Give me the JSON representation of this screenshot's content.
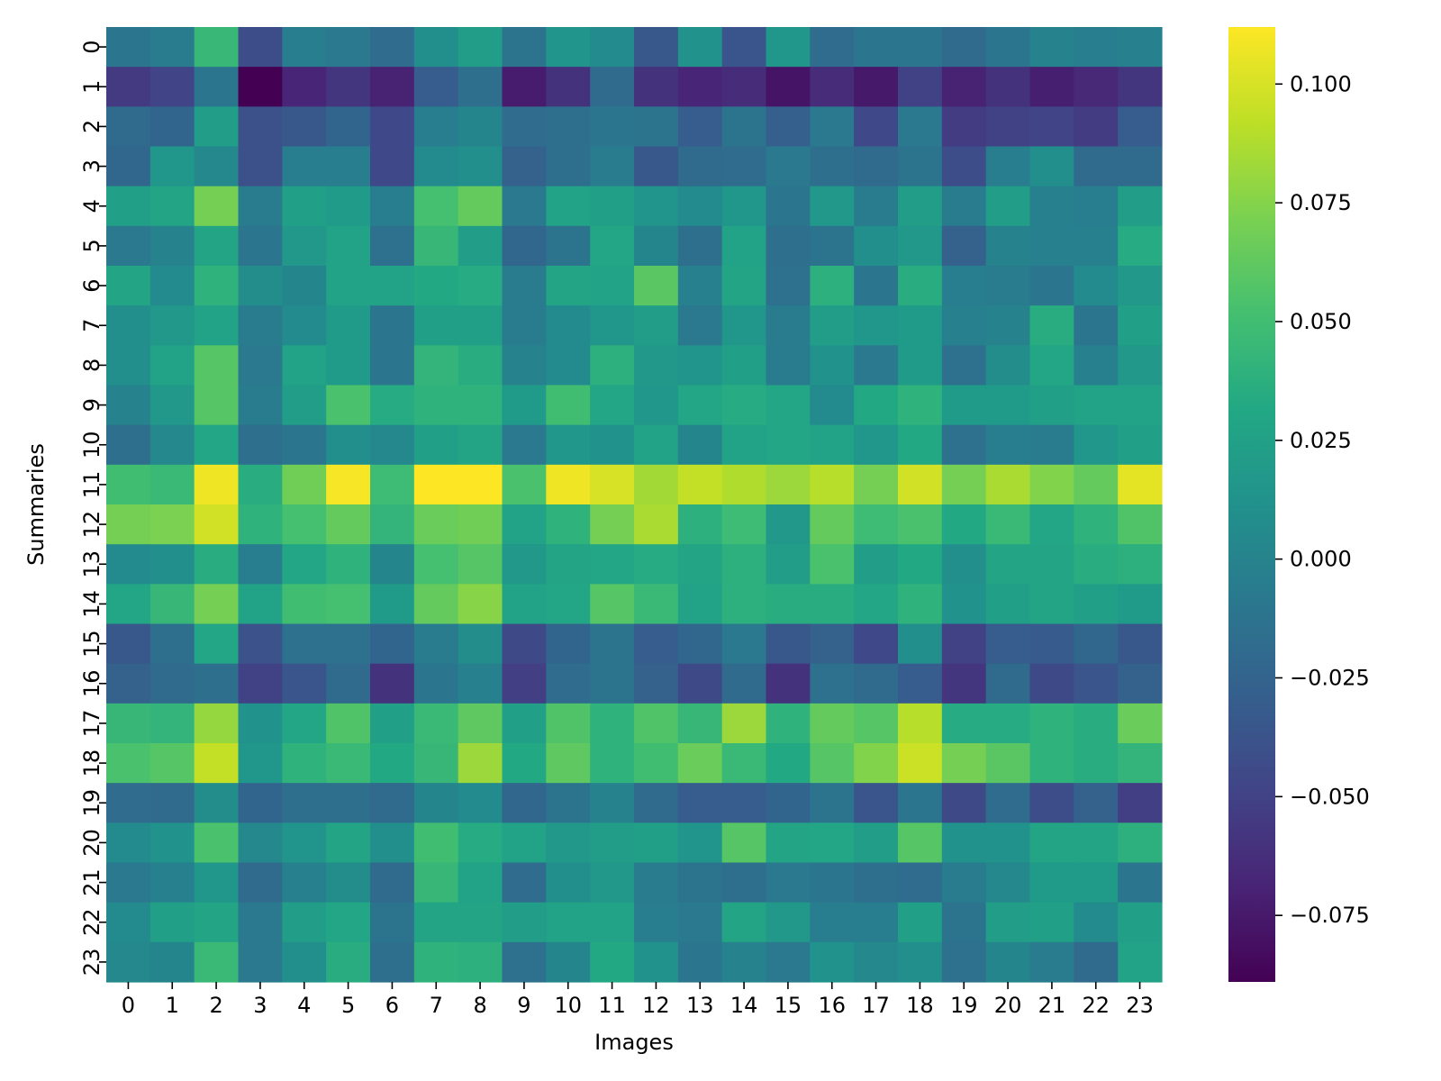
{
  "chart_data": {
    "type": "heatmap",
    "xlabel": "Images",
    "ylabel": "Summaries",
    "x_categories": [
      "0",
      "1",
      "2",
      "3",
      "4",
      "5",
      "6",
      "7",
      "8",
      "9",
      "10",
      "11",
      "12",
      "13",
      "14",
      "15",
      "16",
      "17",
      "18",
      "19",
      "20",
      "21",
      "22",
      "23"
    ],
    "y_categories": [
      "0",
      "1",
      "2",
      "3",
      "4",
      "5",
      "6",
      "7",
      "8",
      "9",
      "10",
      "11",
      "12",
      "13",
      "14",
      "15",
      "16",
      "17",
      "18",
      "19",
      "20",
      "21",
      "22",
      "23"
    ],
    "colormap": "viridis",
    "value_range": [
      -0.089,
      0.112
    ],
    "colorbar_ticks": [
      {
        "value": 0.1,
        "label": "0.100"
      },
      {
        "value": 0.075,
        "label": "0.075"
      },
      {
        "value": 0.05,
        "label": "0.050"
      },
      {
        "value": 0.025,
        "label": "0.025"
      },
      {
        "value": 0.0,
        "label": "0.000"
      },
      {
        "value": -0.025,
        "label": "−0.025"
      },
      {
        "value": -0.05,
        "label": "−0.050"
      },
      {
        "value": -0.075,
        "label": "−0.075"
      }
    ],
    "values": [
      [
        -0.01,
        -0.006,
        0.045,
        -0.042,
        -0.004,
        -0.008,
        -0.018,
        0.01,
        0.022,
        -0.012,
        0.014,
        0.006,
        -0.034,
        0.012,
        -0.036,
        0.016,
        -0.018,
        -0.01,
        -0.01,
        -0.02,
        -0.01,
        0.0,
        -0.004,
        -0.002
      ],
      [
        -0.055,
        -0.048,
        -0.01,
        -0.089,
        -0.068,
        -0.058,
        -0.07,
        -0.03,
        -0.016,
        -0.074,
        -0.06,
        -0.02,
        -0.06,
        -0.068,
        -0.064,
        -0.078,
        -0.064,
        -0.075,
        -0.05,
        -0.07,
        -0.06,
        -0.072,
        -0.066,
        -0.058
      ],
      [
        -0.02,
        -0.024,
        0.022,
        -0.04,
        -0.034,
        -0.024,
        -0.046,
        -0.004,
        0.002,
        -0.018,
        -0.016,
        -0.01,
        -0.012,
        -0.03,
        -0.012,
        -0.028,
        -0.008,
        -0.046,
        -0.008,
        -0.054,
        -0.05,
        -0.048,
        -0.054,
        -0.03
      ],
      [
        -0.022,
        0.016,
        0.004,
        -0.04,
        -0.004,
        -0.004,
        -0.046,
        0.006,
        0.01,
        -0.026,
        -0.016,
        -0.006,
        -0.034,
        -0.02,
        -0.018,
        -0.008,
        -0.016,
        -0.02,
        -0.012,
        -0.042,
        -0.004,
        0.01,
        -0.02,
        -0.02
      ],
      [
        0.024,
        0.028,
        0.07,
        -0.006,
        0.024,
        0.02,
        -0.004,
        0.052,
        0.064,
        -0.008,
        0.026,
        0.024,
        0.014,
        0.006,
        0.016,
        -0.01,
        0.018,
        -0.006,
        0.022,
        -0.006,
        0.022,
        -0.002,
        -0.004,
        0.022
      ],
      [
        -0.008,
        0.0,
        0.028,
        -0.01,
        0.018,
        0.026,
        -0.014,
        0.044,
        0.022,
        -0.022,
        -0.012,
        0.03,
        0.002,
        -0.016,
        0.026,
        -0.016,
        -0.012,
        0.01,
        0.018,
        -0.026,
        0.0,
        -0.002,
        -0.002,
        0.034
      ],
      [
        0.028,
        0.006,
        0.04,
        0.008,
        0.002,
        0.026,
        0.026,
        0.032,
        0.034,
        -0.006,
        0.028,
        0.026,
        0.06,
        -0.002,
        0.028,
        -0.014,
        0.038,
        -0.01,
        0.036,
        -0.004,
        -0.006,
        -0.01,
        0.006,
        0.018
      ],
      [
        0.01,
        0.018,
        0.026,
        -0.006,
        0.006,
        0.02,
        -0.01,
        0.024,
        0.024,
        -0.006,
        0.006,
        0.016,
        0.022,
        -0.008,
        0.016,
        -0.006,
        0.022,
        0.016,
        0.02,
        -0.002,
        0.0,
        0.036,
        -0.01,
        0.024
      ],
      [
        0.01,
        0.026,
        0.058,
        -0.008,
        0.026,
        0.02,
        -0.01,
        0.042,
        0.036,
        0.0,
        0.006,
        0.038,
        0.018,
        0.014,
        0.024,
        -0.006,
        0.012,
        -0.008,
        0.02,
        -0.014,
        0.008,
        0.03,
        -0.002,
        0.018
      ],
      [
        0.0,
        0.018,
        0.058,
        -0.006,
        0.022,
        0.054,
        0.034,
        0.04,
        0.04,
        0.02,
        0.05,
        0.03,
        0.016,
        0.03,
        0.034,
        0.03,
        0.006,
        0.032,
        0.04,
        0.02,
        0.02,
        0.024,
        0.026,
        0.026
      ],
      [
        -0.016,
        0.004,
        0.03,
        -0.016,
        -0.01,
        0.01,
        0.004,
        0.024,
        0.028,
        -0.008,
        0.016,
        0.012,
        0.026,
        0.002,
        0.026,
        0.03,
        0.026,
        0.016,
        0.032,
        -0.014,
        -0.004,
        -0.006,
        0.016,
        0.024
      ],
      [
        0.05,
        0.046,
        0.108,
        0.036,
        0.068,
        0.11,
        0.048,
        0.112,
        0.112,
        0.054,
        0.108,
        0.1,
        0.084,
        0.094,
        0.088,
        0.082,
        0.09,
        0.07,
        0.098,
        0.07,
        0.086,
        0.074,
        0.064,
        0.104
      ],
      [
        0.07,
        0.072,
        0.098,
        0.04,
        0.052,
        0.064,
        0.042,
        0.066,
        0.068,
        0.026,
        0.04,
        0.07,
        0.086,
        0.038,
        0.048,
        0.018,
        0.064,
        0.048,
        0.054,
        0.032,
        0.046,
        0.03,
        0.04,
        0.056
      ],
      [
        0.006,
        0.01,
        0.036,
        -0.004,
        0.03,
        0.04,
        0.002,
        0.052,
        0.058,
        0.018,
        0.028,
        0.03,
        0.034,
        0.028,
        0.038,
        0.022,
        0.054,
        0.022,
        0.032,
        0.01,
        0.028,
        0.028,
        0.036,
        0.038
      ],
      [
        0.03,
        0.044,
        0.07,
        0.026,
        0.05,
        0.052,
        0.02,
        0.064,
        0.076,
        0.026,
        0.03,
        0.058,
        0.046,
        0.026,
        0.038,
        0.036,
        0.036,
        0.03,
        0.04,
        0.012,
        0.024,
        0.028,
        0.024,
        0.02
      ],
      [
        -0.034,
        -0.016,
        0.03,
        -0.038,
        -0.014,
        -0.014,
        -0.024,
        -0.006,
        0.008,
        -0.044,
        -0.024,
        -0.012,
        -0.03,
        -0.022,
        -0.008,
        -0.034,
        -0.026,
        -0.046,
        0.01,
        -0.05,
        -0.03,
        -0.032,
        -0.022,
        -0.034
      ],
      [
        -0.026,
        -0.02,
        -0.016,
        -0.05,
        -0.036,
        -0.02,
        -0.06,
        -0.01,
        -0.002,
        -0.052,
        -0.018,
        -0.012,
        -0.026,
        -0.044,
        -0.02,
        -0.06,
        -0.014,
        -0.02,
        -0.03,
        -0.058,
        -0.02,
        -0.044,
        -0.036,
        -0.026
      ],
      [
        0.044,
        0.042,
        0.08,
        0.012,
        0.03,
        0.056,
        0.024,
        0.046,
        0.062,
        0.024,
        0.056,
        0.04,
        0.056,
        0.044,
        0.082,
        0.04,
        0.064,
        0.058,
        0.09,
        0.034,
        0.034,
        0.04,
        0.036,
        0.066
      ],
      [
        0.054,
        0.058,
        0.094,
        0.016,
        0.04,
        0.046,
        0.032,
        0.044,
        0.082,
        0.032,
        0.062,
        0.04,
        0.05,
        0.066,
        0.046,
        0.032,
        0.058,
        0.074,
        0.096,
        0.07,
        0.06,
        0.04,
        0.036,
        0.042
      ],
      [
        -0.018,
        -0.02,
        0.008,
        -0.024,
        -0.016,
        -0.016,
        -0.02,
        0.002,
        0.006,
        -0.022,
        -0.012,
        0.0,
        -0.02,
        -0.03,
        -0.03,
        -0.024,
        -0.012,
        -0.036,
        -0.01,
        -0.044,
        -0.018,
        -0.042,
        -0.026,
        -0.052
      ],
      [
        0.006,
        0.012,
        0.054,
        0.004,
        0.014,
        0.028,
        0.01,
        0.05,
        0.034,
        0.026,
        0.018,
        0.022,
        0.024,
        0.014,
        0.058,
        0.028,
        0.03,
        0.022,
        0.058,
        0.012,
        0.012,
        0.028,
        0.028,
        0.038
      ],
      [
        -0.008,
        -0.002,
        0.016,
        -0.02,
        -0.002,
        0.008,
        -0.02,
        0.044,
        0.026,
        -0.018,
        0.01,
        0.018,
        -0.006,
        -0.012,
        -0.016,
        -0.008,
        -0.01,
        -0.016,
        -0.018,
        -0.006,
        0.004,
        0.02,
        0.02,
        -0.01
      ],
      [
        0.006,
        0.024,
        0.028,
        -0.008,
        0.022,
        0.03,
        -0.012,
        0.028,
        0.028,
        0.022,
        0.026,
        0.026,
        -0.004,
        -0.008,
        0.028,
        0.018,
        -0.004,
        -0.004,
        0.024,
        -0.012,
        0.022,
        0.024,
        0.006,
        0.024
      ],
      [
        0.004,
        0.002,
        0.046,
        -0.008,
        0.01,
        0.036,
        -0.016,
        0.04,
        0.038,
        -0.014,
        0.002,
        0.032,
        0.012,
        -0.01,
        0.0,
        -0.008,
        0.012,
        0.004,
        0.01,
        -0.014,
        0.002,
        -0.006,
        -0.02,
        0.026
      ]
    ]
  }
}
